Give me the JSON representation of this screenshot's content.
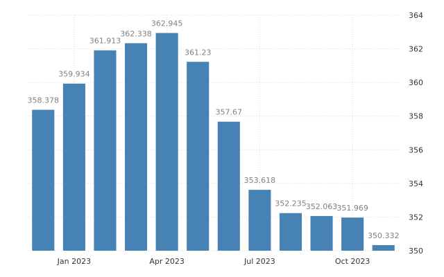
{
  "chart_data": {
    "type": "bar",
    "x": [
      "2022-12",
      "2023-01",
      "2023-02",
      "2023-03",
      "2023-04",
      "2023-05",
      "2023-06",
      "2023-07",
      "2023-08",
      "2023-09",
      "2023-10",
      "2023-11"
    ],
    "values": [
      358.378,
      359.934,
      361.913,
      362.338,
      362.945,
      361.23,
      357.67,
      353.618,
      352.235,
      352.063,
      351.969,
      350.332
    ],
    "value_labels": [
      "358.378",
      "359.934",
      "361.913",
      "362.338",
      "362.945",
      "361.23",
      "357.67",
      "353.618",
      "352.235",
      "352.063",
      "351.969",
      "350.332"
    ],
    "ylim": [
      350,
      364
    ],
    "y_ticks": [
      350,
      352,
      354,
      356,
      358,
      360,
      362,
      364
    ],
    "x_ticks": [
      {
        "label": "Jan 2023",
        "at": "2023-01"
      },
      {
        "label": "Apr 2023",
        "at": "2023-04"
      },
      {
        "label": "Jul 2023",
        "at": "2023-07"
      },
      {
        "label": "Oct 2023",
        "at": "2023-10"
      }
    ],
    "y_axis_position": "right",
    "grid": true,
    "title": "",
    "xlabel": "",
    "ylabel": "",
    "bar_color": "#4682b4"
  }
}
